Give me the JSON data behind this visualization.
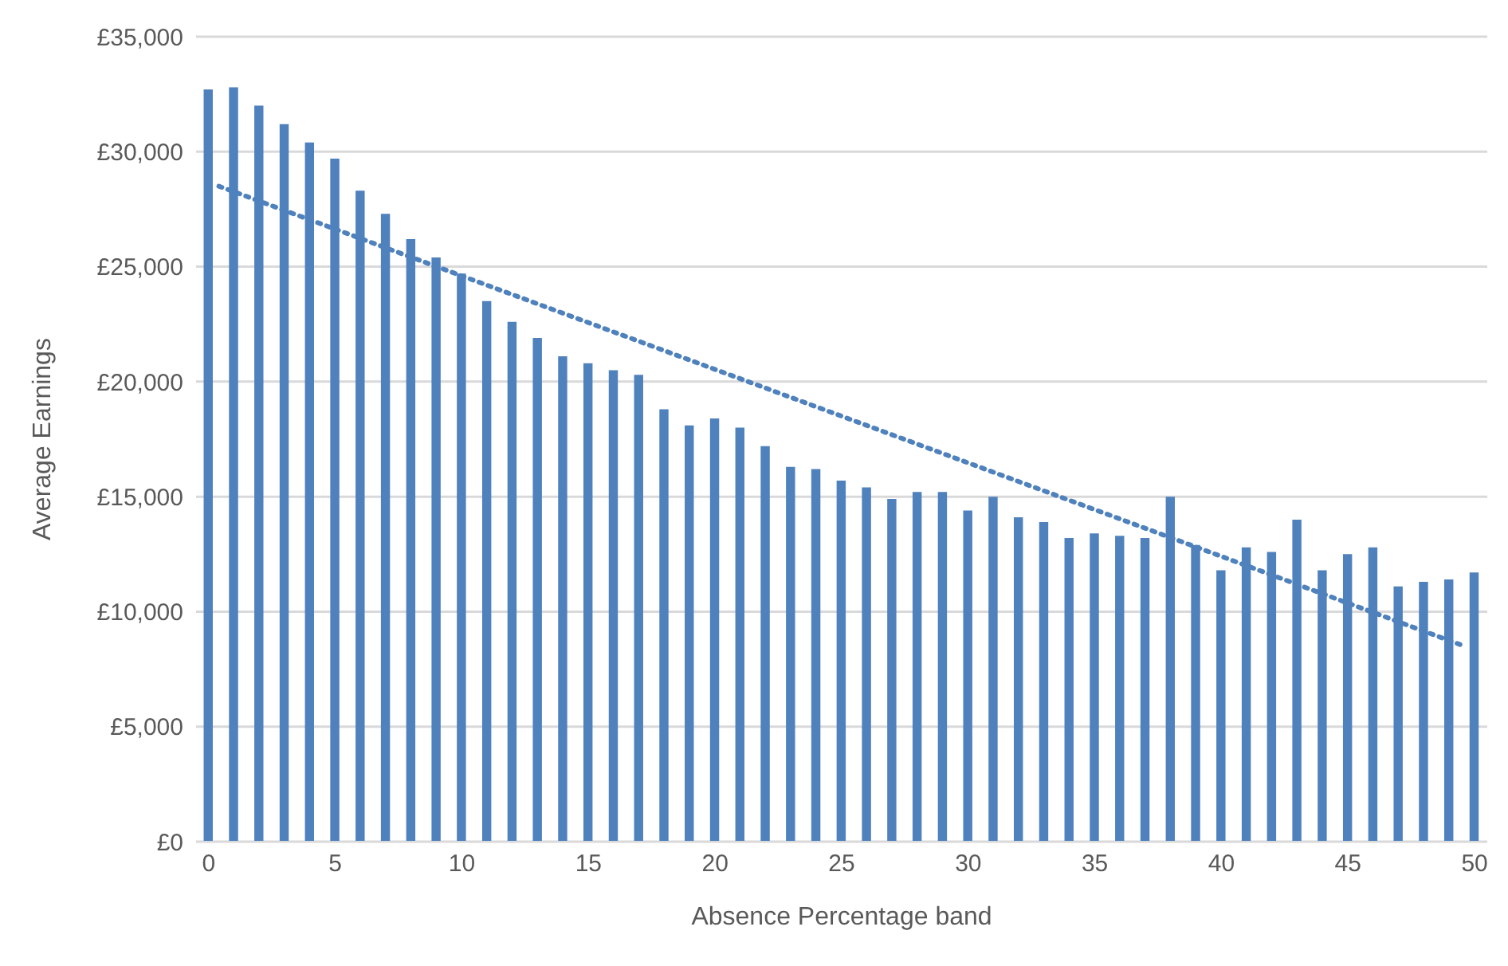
{
  "chart_data": {
    "type": "bar",
    "xlabel": "Absence Percentage band",
    "ylabel": "Average Earnings",
    "x": [
      0,
      1,
      2,
      3,
      4,
      5,
      6,
      7,
      8,
      9,
      10,
      11,
      12,
      13,
      14,
      15,
      16,
      17,
      18,
      19,
      20,
      21,
      22,
      23,
      24,
      25,
      26,
      27,
      28,
      29,
      30,
      31,
      32,
      33,
      34,
      35,
      36,
      37,
      38,
      39,
      40,
      41,
      42,
      43,
      44,
      45,
      46,
      47,
      48,
      49,
      50
    ],
    "series": [
      {
        "color": "#4f81bd",
        "values": [
          32700,
          32800,
          32000,
          31200,
          30400,
          29700,
          28300,
          27300,
          26200,
          25400,
          24700,
          23500,
          22600,
          21900,
          21100,
          20800,
          20500,
          20300,
          18800,
          18100,
          18400,
          18000,
          17200,
          16300,
          16200,
          15700,
          15400,
          14900,
          15200,
          15200,
          14400,
          15000,
          14100,
          13900,
          13200,
          13400,
          13300,
          13200,
          15000,
          12900,
          11800,
          12800,
          12600,
          14000,
          11800,
          12500,
          12800,
          11100,
          11300,
          11400,
          11700
        ]
      },
      {
        "type": "line",
        "color": "#4f81bd",
        "x": [
          0.4,
          49.6
        ],
        "values": [
          28500,
          8500
        ],
        "line_style": "dotted",
        "marker": "none"
      }
    ],
    "xlim": [
      -0.5,
      50.5
    ],
    "xticks": [
      0,
      5,
      10,
      15,
      20,
      25,
      30,
      35,
      40,
      45,
      50
    ],
    "ylim": [
      0,
      35000
    ],
    "yticks": [
      {
        "value": 0,
        "label": "£0"
      },
      {
        "value": 5000,
        "label": "£5,000"
      },
      {
        "value": 10000,
        "label": "£10,000"
      },
      {
        "value": 15000,
        "label": "£15,000"
      },
      {
        "value": 20000,
        "label": "£20,000"
      },
      {
        "value": 25000,
        "label": "£25,000"
      },
      {
        "value": 30000,
        "label": "£30,000"
      },
      {
        "value": 35000,
        "label": "£35,000"
      }
    ],
    "grid": "y",
    "legend": false
  }
}
